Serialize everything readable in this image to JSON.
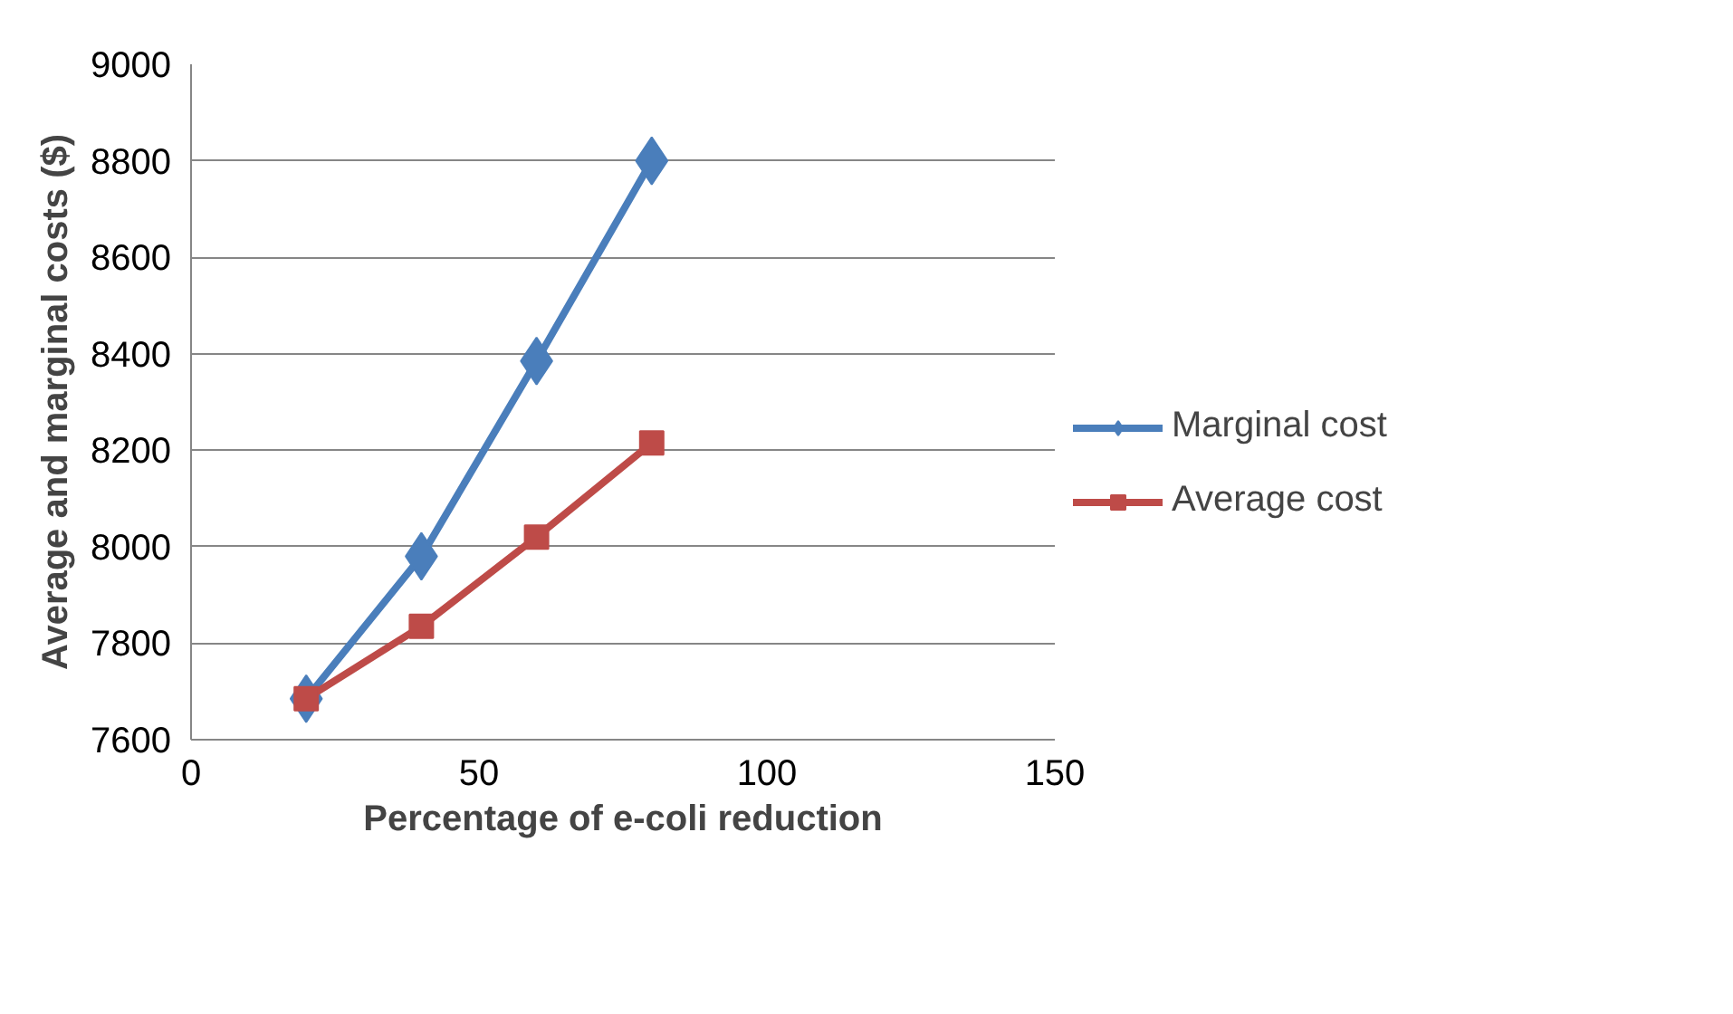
{
  "chart_data": {
    "type": "line",
    "xlabel": "Percentage of e-coli reduction",
    "ylabel": "Average and marginal costs ($)",
    "x": [
      20,
      40,
      60,
      80
    ],
    "series": [
      {
        "name": "Marginal cost",
        "color": "#4a7ebb",
        "marker": "diamond",
        "values": [
          7685,
          7980,
          8385,
          8800
        ]
      },
      {
        "name": "Average cost",
        "color": "#be4b48",
        "marker": "square",
        "values": [
          7685,
          7835,
          8020,
          8215
        ]
      }
    ],
    "xlim": [
      0,
      150
    ],
    "xticks": [
      0,
      50,
      100,
      150
    ],
    "ylim": [
      7600,
      9000
    ],
    "yticks": [
      7600,
      7800,
      8000,
      8200,
      8400,
      8600,
      8800,
      9000
    ],
    "grid": "y",
    "legend": "right"
  }
}
